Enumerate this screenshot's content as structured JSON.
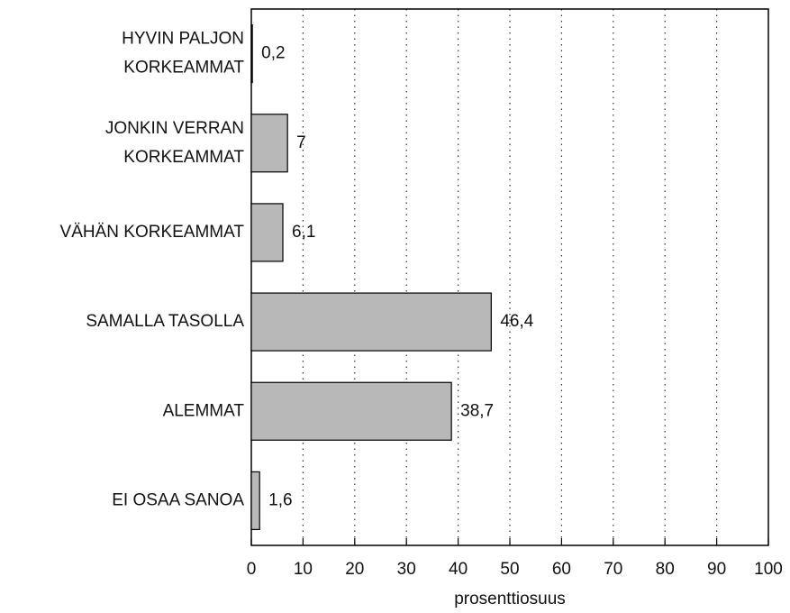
{
  "chart_data": {
    "type": "hbar",
    "categories": [
      [
        "HYVIN PALJON",
        "KORKEAMMAT"
      ],
      [
        "JONKIN VERRAN",
        "KORKEAMMAT"
      ],
      [
        "VÄHÄN KORKEAMMAT"
      ],
      [
        "SAMALLA TASOLLA"
      ],
      [
        "ALEMMAT"
      ],
      [
        "EI OSAA SANOA"
      ]
    ],
    "values": [
      0.2,
      7,
      6.1,
      46.4,
      38.7,
      1.6
    ],
    "value_labels": [
      "0,2",
      "7",
      "6,1",
      "46,4",
      "38,7",
      "1,6"
    ],
    "color": "#b8b8b8",
    "xlabel": "prosenttiosuus",
    "xlim": [
      0,
      100
    ],
    "xticks": [
      0,
      10,
      20,
      30,
      40,
      50,
      60,
      70,
      80,
      90,
      100
    ],
    "grid": true
  }
}
